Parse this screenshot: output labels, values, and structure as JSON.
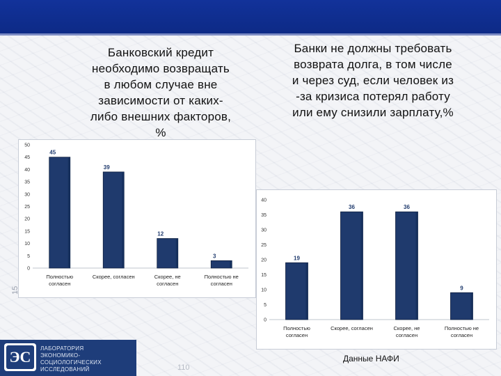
{
  "slide": {
    "side_number": "15",
    "page_number": "110",
    "source": "Данные НАФИ",
    "logo": {
      "mark": "ЭС",
      "lines": [
        "ЛАБОРАТОРИЯ",
        "ЭКОНОМИКО-СОЦИОЛОГИЧЕСКИХ",
        "ИССЛЕДОВАНИЙ"
      ]
    },
    "colors": {
      "header": "#12329a",
      "bar": "#1f3a6d",
      "value_label": "#1f3a6d"
    }
  },
  "chart_data": [
    {
      "type": "bar",
      "title": "Банковский кредит необходимо возвращать в любом случае вне зависимости от каких-либо внешних факторов, %",
      "title_lines": [
        "Банковский кредит",
        "необходимо возвращать",
        "в любом случае вне",
        "зависимости от каких-",
        "либо внешних факторов,",
        "%"
      ],
      "categories": [
        [
          "Полностью",
          "согласен"
        ],
        [
          "Скорее, согласен"
        ],
        [
          "Скорее, не",
          "согласен"
        ],
        [
          "Полностью не",
          "согласен"
        ]
      ],
      "values": [
        45,
        39,
        12,
        3
      ],
      "ylim": [
        0,
        50
      ],
      "yticks": [
        0,
        5,
        10,
        15,
        20,
        25,
        30,
        35,
        40,
        45,
        50
      ],
      "xlabel": "",
      "ylabel": ""
    },
    {
      "type": "bar",
      "title": "Банки не должны требовать возврата долга, в том числе и через суд, если человек из -за кризиса потерял работу или ему снизили зарплату,%",
      "title_lines": [
        "Банки не должны требовать",
        "возврата долга, в том числе",
        "и через суд, если человек из",
        "-за кризиса потерял работу",
        "или ему снизили зарплату,%"
      ],
      "categories": [
        [
          "Полностью",
          "согласен"
        ],
        [
          "Скорее, согласен"
        ],
        [
          "Скорее, не",
          "согласен"
        ],
        [
          "Полностью не",
          "согласен"
        ]
      ],
      "values": [
        19,
        36,
        36,
        9
      ],
      "ylim": [
        0,
        40
      ],
      "yticks": [
        0,
        5,
        10,
        15,
        20,
        25,
        30,
        35,
        40
      ],
      "xlabel": "",
      "ylabel": ""
    }
  ]
}
